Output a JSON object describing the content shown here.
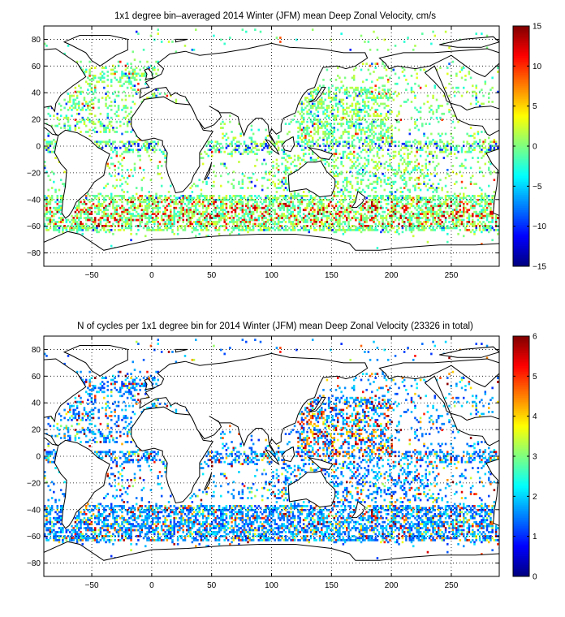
{
  "chart_data": [
    {
      "type": "heatmap",
      "title": "1x1 degree bin–averaged 2014 Winter (JFM) mean Deep Zonal Velocity, cm/s",
      "xlabel": "",
      "ylabel": "",
      "xlim": [
        -90,
        290
      ],
      "ylim": [
        -90,
        90
      ],
      "xticks": [
        -50,
        0,
        50,
        100,
        150,
        200,
        250
      ],
      "xtick_labels": [
        "−50",
        "0",
        "50",
        "100",
        "150",
        "200",
        "250"
      ],
      "yticks": [
        80,
        60,
        40,
        20,
        0,
        -20,
        -40,
        -60,
        -80
      ],
      "ytick_labels": [
        "80",
        "60",
        "40",
        "20",
        "0",
        "−20",
        "−40",
        "−60",
        "−80"
      ],
      "grid": true,
      "colormap": "jet",
      "clim": [
        -15,
        15
      ],
      "colorbar_ticks": [
        15,
        10,
        5,
        0,
        -5,
        -10,
        -15
      ],
      "colorbar_labels": [
        "15",
        "10",
        "5",
        "0",
        "−5",
        "−10",
        "−15"
      ],
      "colorbar_colors": [
        "#00008f",
        "#0000ff",
        "#0080ff",
        "#00ffff",
        "#80ff80",
        "#ffff00",
        "#ff8000",
        "#ff0000",
        "#800000"
      ],
      "dominant_value_approx": 0
    },
    {
      "type": "heatmap",
      "title": "N of cycles per 1x1 degree bin for 2014 Winter (JFM) mean Deep Zonal Velocity (23326 in total)",
      "xlabel": "",
      "ylabel": "",
      "xlim": [
        -90,
        290
      ],
      "ylim": [
        -90,
        90
      ],
      "xticks": [
        -50,
        0,
        50,
        100,
        150,
        200,
        250
      ],
      "xtick_labels": [
        "−50",
        "0",
        "50",
        "100",
        "150",
        "200",
        "250"
      ],
      "yticks": [
        80,
        60,
        40,
        20,
        0,
        -20,
        -40,
        -60,
        -80
      ],
      "ytick_labels": [
        "80",
        "60",
        "40",
        "20",
        "0",
        "−20",
        "−40",
        "−60",
        "−80"
      ],
      "grid": true,
      "colormap": "jet",
      "clim": [
        0,
        6
      ],
      "colorbar_ticks": [
        6,
        5,
        4,
        3,
        2,
        1,
        0
      ],
      "colorbar_labels": [
        "6",
        "5",
        "4",
        "3",
        "2",
        "1",
        "0"
      ],
      "colorbar_colors": [
        "#00008f",
        "#0000ff",
        "#0080ff",
        "#00ffff",
        "#80ff80",
        "#ffff00",
        "#ff8000",
        "#ff0000",
        "#800000"
      ],
      "total_cycles": 23326,
      "dominant_value_approx": 1
    }
  ]
}
